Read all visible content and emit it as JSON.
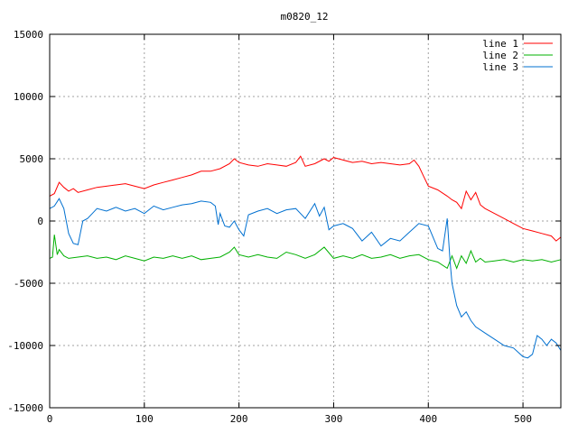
{
  "chart_data": {
    "type": "line",
    "title": "m0820_12",
    "xlabel": "",
    "ylabel": "",
    "xlim": [
      0,
      540
    ],
    "ylim": [
      -15000,
      15000
    ],
    "xticks": [
      0,
      100,
      200,
      300,
      400,
      500
    ],
    "yticks": [
      -15000,
      -10000,
      -5000,
      0,
      5000,
      10000,
      15000
    ],
    "grid": true,
    "legend_position": "top-right",
    "series": [
      {
        "name": "line 1",
        "color": "#ff0000",
        "x": [
          0,
          5,
          10,
          15,
          20,
          25,
          30,
          40,
          50,
          60,
          70,
          80,
          90,
          100,
          110,
          120,
          130,
          140,
          150,
          160,
          170,
          180,
          190,
          195,
          200,
          210,
          220,
          230,
          240,
          250,
          260,
          265,
          270,
          280,
          290,
          295,
          300,
          310,
          320,
          330,
          340,
          350,
          360,
          370,
          380,
          385,
          390,
          395,
          400,
          410,
          420,
          425,
          430,
          435,
          440,
          445,
          450,
          455,
          460,
          470,
          480,
          490,
          500,
          510,
          520,
          530,
          535,
          540
        ],
        "y": [
          2000,
          2200,
          3100,
          2700,
          2400,
          2600,
          2300,
          2500,
          2700,
          2800,
          2900,
          3000,
          2800,
          2600,
          2900,
          3100,
          3300,
          3500,
          3700,
          4000,
          4000,
          4200,
          4600,
          5000,
          4700,
          4500,
          4400,
          4600,
          4500,
          4400,
          4700,
          5200,
          4400,
          4600,
          5000,
          4800,
          5100,
          4900,
          4700,
          4800,
          4600,
          4700,
          4600,
          4500,
          4600,
          4900,
          4400,
          3600,
          2800,
          2500,
          2000,
          1700,
          1500,
          1000,
          2400,
          1700,
          2300,
          1300,
          1000,
          600,
          200,
          -200,
          -600,
          -800,
          -1000,
          -1200,
          -1600,
          -1300
        ]
      },
      {
        "name": "line 2",
        "color": "#00b000",
        "x": [
          0,
          3,
          5,
          8,
          10,
          15,
          20,
          30,
          40,
          50,
          60,
          70,
          80,
          90,
          100,
          110,
          120,
          130,
          140,
          150,
          160,
          170,
          180,
          190,
          195,
          200,
          210,
          220,
          230,
          240,
          250,
          260,
          270,
          280,
          290,
          300,
          310,
          320,
          330,
          340,
          350,
          360,
          370,
          380,
          390,
          400,
          410,
          420,
          425,
          430,
          435,
          440,
          445,
          450,
          455,
          460,
          470,
          480,
          490,
          500,
          510,
          520,
          530,
          540
        ],
        "y": [
          -3000,
          -2900,
          -1100,
          -2700,
          -2300,
          -2800,
          -3000,
          -2900,
          -2800,
          -3000,
          -2900,
          -3100,
          -2800,
          -3000,
          -3200,
          -2900,
          -3000,
          -2800,
          -3000,
          -2800,
          -3100,
          -3000,
          -2900,
          -2500,
          -2100,
          -2700,
          -2900,
          -2700,
          -2900,
          -3000,
          -2500,
          -2700,
          -3000,
          -2700,
          -2100,
          -3000,
          -2800,
          -3000,
          -2700,
          -3000,
          -2900,
          -2700,
          -3000,
          -2800,
          -2700,
          -3100,
          -3300,
          -3800,
          -2800,
          -3800,
          -2800,
          -3400,
          -2400,
          -3300,
          -3000,
          -3300,
          -3200,
          -3100,
          -3300,
          -3100,
          -3200,
          -3100,
          -3300,
          -3100
        ]
      },
      {
        "name": "line 3",
        "color": "#0070d0",
        "x": [
          0,
          5,
          10,
          15,
          20,
          25,
          30,
          35,
          40,
          45,
          50,
          60,
          70,
          80,
          90,
          100,
          110,
          120,
          130,
          140,
          150,
          160,
          170,
          175,
          178,
          180,
          185,
          190,
          195,
          200,
          205,
          210,
          220,
          230,
          240,
          250,
          260,
          270,
          280,
          285,
          290,
          295,
          300,
          310,
          320,
          330,
          340,
          350,
          360,
          370,
          380,
          390,
          400,
          410,
          415,
          420,
          423,
          425,
          430,
          435,
          440,
          445,
          450,
          460,
          470,
          480,
          490,
          500,
          505,
          510,
          515,
          520,
          525,
          530,
          535,
          540
        ],
        "y": [
          1000,
          1200,
          1800,
          1000,
          -1000,
          -1800,
          -1900,
          0,
          200,
          600,
          1000,
          800,
          1100,
          800,
          1000,
          600,
          1200,
          900,
          1100,
          1300,
          1400,
          1600,
          1500,
          1200,
          -300,
          600,
          -400,
          -500,
          0,
          -700,
          -1200,
          500,
          800,
          1000,
          600,
          900,
          1000,
          200,
          1400,
          400,
          1100,
          -700,
          -400,
          -200,
          -600,
          -1600,
          -900,
          -2000,
          -1400,
          -1600,
          -900,
          -200,
          -400,
          -2200,
          -2400,
          200,
          -3300,
          -5000,
          -6800,
          -7700,
          -7300,
          -8000,
          -8500,
          -9000,
          -9500,
          -10000,
          -10200,
          -10900,
          -11000,
          -10700,
          -9200,
          -9500,
          -10000,
          -9500,
          -9800,
          -10400
        ]
      }
    ]
  }
}
